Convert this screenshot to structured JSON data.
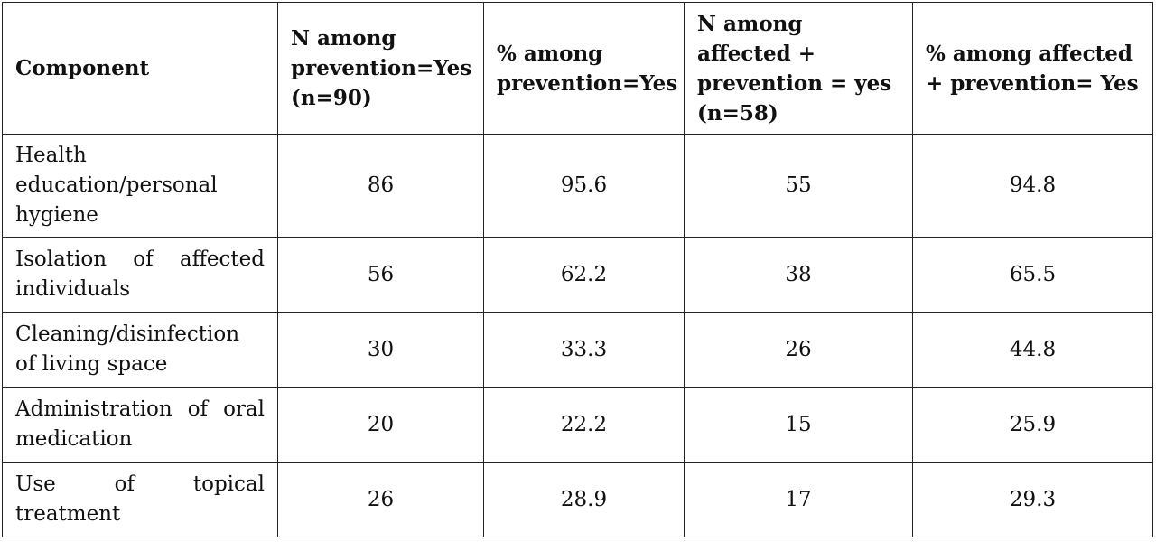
{
  "table": {
    "headers": [
      "Component",
      "N among prevention=Yes (n=90)",
      "% among prevention=Yes",
      "N among affected + prevention = yes (n=58)",
      "% among affected + prevention= Yes"
    ],
    "rows": [
      {
        "component": "Health education/personal hygiene",
        "n_prev": "86",
        "pct_prev": "95.6",
        "n_aff": "55",
        "pct_aff": "94.8"
      },
      {
        "component": "Isolation of affected individuals",
        "n_prev": "56",
        "pct_prev": "62.2",
        "n_aff": "38",
        "pct_aff": "65.5"
      },
      {
        "component": "Cleaning/disinfection of living space",
        "n_prev": "30",
        "pct_prev": "33.3",
        "n_aff": "26",
        "pct_aff": "44.8"
      },
      {
        "component": "Administration of oral medication",
        "n_prev": "20",
        "pct_prev": "22.2",
        "n_aff": "15",
        "pct_aff": "25.9"
      },
      {
        "component": "Use of topical treatment",
        "n_prev": "26",
        "pct_prev": "28.9",
        "n_aff": "17",
        "pct_aff": "29.3"
      }
    ]
  }
}
